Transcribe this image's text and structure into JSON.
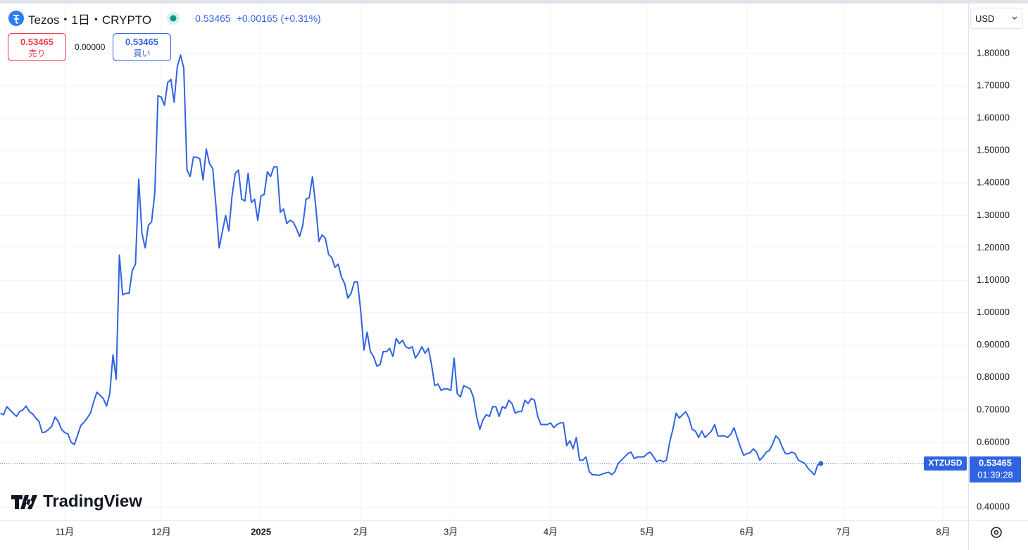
{
  "header": {
    "symbol": "Tezos・1日・CRYPTO",
    "price": "0.53465",
    "change": "+0.00165",
    "change_pct": "(+0.31%)"
  },
  "trade": {
    "sell_price": "0.53465",
    "sell_label": "売り",
    "spread": "0.00000",
    "buy_price": "0.53465",
    "buy_label": "買い"
  },
  "currency": "USD",
  "watermark": "TradingView",
  "chart_data": {
    "type": "line",
    "categories": [
      null,
      null,
      null,
      null,
      null,
      null,
      null,
      null,
      null,
      null,
      null,
      null,
      null,
      null,
      null,
      null,
      null,
      null,
      null,
      null,
      "11月",
      null,
      null,
      null,
      null,
      null,
      null,
      null,
      null,
      null,
      null,
      null,
      null,
      null,
      null,
      null,
      null,
      null,
      null,
      null,
      null,
      null,
      null,
      null,
      null,
      null,
      null,
      null,
      null,
      null,
      "12月",
      null,
      null,
      null,
      null,
      null,
      null,
      null,
      null,
      null,
      null,
      null,
      null,
      null,
      null,
      null,
      null,
      null,
      null,
      null,
      null,
      null,
      null,
      null,
      null,
      null,
      null,
      null,
      null,
      null,
      null,
      "2025",
      null,
      null,
      null,
      null,
      null,
      null,
      null,
      null,
      null,
      null,
      null,
      null,
      null,
      null,
      null,
      null,
      null,
      null,
      null,
      null,
      null,
      null,
      null,
      null,
      null,
      null,
      null,
      null,
      null,
      null,
      "2月",
      null,
      null,
      null,
      null,
      null,
      null,
      null,
      null,
      null,
      null,
      null,
      null,
      null,
      null,
      null,
      null,
      null,
      null,
      null,
      null,
      null,
      null,
      null,
      null,
      null,
      null,
      null,
      "3月",
      null,
      null,
      null,
      null,
      null,
      null,
      null,
      null,
      null,
      null,
      null,
      null,
      null,
      null,
      null,
      null,
      null,
      null,
      null,
      null,
      null,
      null,
      null,
      null,
      null,
      null,
      null,
      null,
      null,
      null,
      "4月",
      null,
      null,
      null,
      null,
      null,
      null,
      null,
      null,
      null,
      null,
      null,
      null,
      null,
      null,
      null,
      null,
      null,
      null,
      null,
      null,
      null,
      null,
      null,
      null,
      null,
      null,
      null,
      null,
      null,
      "5月",
      null,
      null,
      null,
      null,
      null,
      null,
      null,
      null,
      null,
      null,
      null,
      null,
      null,
      null,
      null,
      null,
      null,
      null,
      null,
      null,
      null,
      null,
      null,
      null,
      null,
      null,
      null,
      null,
      null,
      null,
      "6月",
      null,
      null,
      null,
      null,
      null,
      null,
      null,
      null,
      null,
      null,
      null,
      null,
      null,
      null,
      null,
      null,
      null,
      null,
      null,
      null,
      null,
      null,
      null,
      null,
      null,
      null,
      null,
      null,
      null,
      "7月",
      null,
      null,
      null,
      null,
      null,
      null,
      null,
      null,
      null,
      null,
      null,
      null,
      null,
      null,
      null,
      null,
      null,
      null,
      null,
      null,
      null,
      null,
      null,
      null,
      null,
      null,
      null,
      null,
      null,
      null,
      "8月"
    ],
    "series": [
      {
        "name": "XTZUSD",
        "color": "#2f63e0",
        "values": [
          0.69,
          0.685,
          0.71,
          0.7,
          0.69,
          0.68,
          0.695,
          0.7,
          0.712,
          0.695,
          0.688,
          0.675,
          0.665,
          0.63,
          0.632,
          0.64,
          0.65,
          0.678,
          0.665,
          0.64,
          0.63,
          0.626,
          0.6,
          0.593,
          0.622,
          0.652,
          0.662,
          0.675,
          0.69,
          0.725,
          0.755,
          0.745,
          0.735,
          0.712,
          0.75,
          0.87,
          0.795,
          1.178,
          1.055,
          1.06,
          1.06,
          1.13,
          1.15,
          1.412,
          1.245,
          1.2,
          1.27,
          1.28,
          1.37,
          1.67,
          1.665,
          1.64,
          1.71,
          1.72,
          1.65,
          1.76,
          1.795,
          1.755,
          1.44,
          1.42,
          1.48,
          1.48,
          1.475,
          1.41,
          1.505,
          1.46,
          1.445,
          1.33,
          1.2,
          1.25,
          1.3,
          1.252,
          1.36,
          1.43,
          1.44,
          1.35,
          1.345,
          1.43,
          1.34,
          1.35,
          1.285,
          1.36,
          1.365,
          1.435,
          1.42,
          1.45,
          1.45,
          1.31,
          1.32,
          1.275,
          1.285,
          1.28,
          1.26,
          1.235,
          1.27,
          1.35,
          1.355,
          1.42,
          1.33,
          1.22,
          1.24,
          1.23,
          1.18,
          1.17,
          1.14,
          1.15,
          1.11,
          1.09,
          1.045,
          1.06,
          1.095,
          1.095,
          1.005,
          0.885,
          0.94,
          0.88,
          0.865,
          0.835,
          0.84,
          0.88,
          0.88,
          0.89,
          0.865,
          0.92,
          0.905,
          0.915,
          0.895,
          0.89,
          0.895,
          0.86,
          0.875,
          0.895,
          0.875,
          0.89,
          0.84,
          0.775,
          0.78,
          0.76,
          0.765,
          0.765,
          0.76,
          0.86,
          0.75,
          0.74,
          0.775,
          0.77,
          0.765,
          0.74,
          0.68,
          0.64,
          0.67,
          0.685,
          0.68,
          0.71,
          0.71,
          0.68,
          0.71,
          0.705,
          0.73,
          0.72,
          0.69,
          0.695,
          0.695,
          0.73,
          0.72,
          0.735,
          0.73,
          0.68,
          0.655,
          0.655,
          0.655,
          0.66,
          0.645,
          0.655,
          0.66,
          0.66,
          0.59,
          0.605,
          0.58,
          0.615,
          0.545,
          0.545,
          0.555,
          0.51,
          0.5,
          0.5,
          0.498,
          0.502,
          0.505,
          0.508,
          0.5,
          0.51,
          0.535,
          0.545,
          0.555,
          0.565,
          0.57,
          0.55,
          0.555,
          0.555,
          0.555,
          0.565,
          0.57,
          0.555,
          0.54,
          0.545,
          0.54,
          0.545,
          0.6,
          0.64,
          0.69,
          0.675,
          0.685,
          0.695,
          0.675,
          0.64,
          0.635,
          0.615,
          0.635,
          0.615,
          0.625,
          0.635,
          0.655,
          0.62,
          0.62,
          0.62,
          0.615,
          0.625,
          0.645,
          0.615,
          0.585,
          0.56,
          0.565,
          0.568,
          0.58,
          0.57,
          0.545,
          0.555,
          0.57,
          0.575,
          0.595,
          0.62,
          0.61,
          0.585,
          0.565,
          0.565,
          0.57,
          0.565,
          0.545,
          0.54,
          0.535,
          0.52,
          0.51,
          0.5,
          0.53,
          0.53465,
          null,
          null,
          null,
          null,
          null,
          null,
          null,
          null,
          null,
          null,
          null,
          null,
          null,
          null,
          null,
          null,
          null,
          null,
          null,
          null,
          null,
          null,
          null,
          null,
          null,
          null,
          null,
          null,
          null,
          null,
          null,
          null,
          null,
          null,
          null,
          null,
          null,
          null
        ]
      }
    ],
    "ylim": [
      0.359,
      1.954
    ],
    "yticks": [
      {
        "value": 0.4,
        "label": "0.40000"
      },
      {
        "value": 0.6,
        "label": "0.60000"
      },
      {
        "value": 0.7,
        "label": "0.70000"
      },
      {
        "value": 0.8,
        "label": "0.80000"
      },
      {
        "value": 0.9,
        "label": "0.90000"
      },
      {
        "value": 1.0,
        "label": "1.00000"
      },
      {
        "value": 1.1,
        "label": "1.10000"
      },
      {
        "value": 1.2,
        "label": "1.20000"
      },
      {
        "value": 1.3,
        "label": "1.30000"
      },
      {
        "value": 1.4,
        "label": "1.40000"
      },
      {
        "value": 1.5,
        "label": "1.50000"
      },
      {
        "value": 1.6,
        "label": "1.60000"
      },
      {
        "value": 1.7,
        "label": "1.70000"
      },
      {
        "value": 1.8,
        "label": "1.80000"
      }
    ],
    "grid": true,
    "last_price": {
      "label": "0.53465",
      "countdown": "01:39:28"
    }
  }
}
